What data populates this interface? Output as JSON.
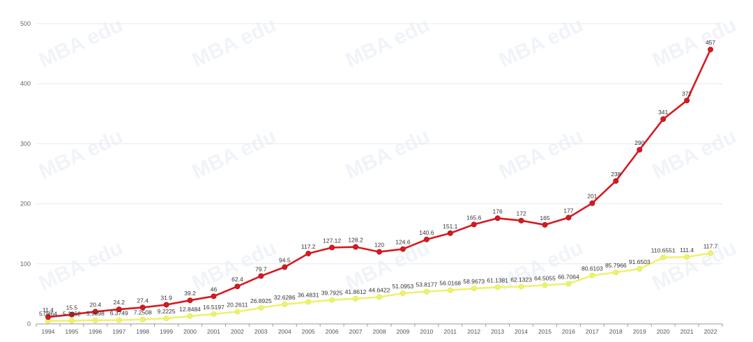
{
  "chart_data": {
    "type": "line",
    "title": "",
    "xlabel": "",
    "ylabel": "",
    "x": [
      "1994",
      "1995",
      "1996",
      "1997",
      "1998",
      "1999",
      "2000",
      "2001",
      "2002",
      "2003",
      "2004",
      "2005",
      "2006",
      "2007",
      "2008",
      "2009",
      "2010",
      "2011",
      "2012",
      "2013",
      "2014",
      "2015",
      "2016",
      "2017",
      "2018",
      "2019",
      "2020",
      "2021",
      "2022"
    ],
    "ylim": [
      0,
      500
    ],
    "yticks": [
      0,
      100,
      200,
      300,
      400,
      500
    ],
    "grid": true,
    "legend": "none",
    "watermark": "MBA edu",
    "series": [
      {
        "color": "#d71920",
        "values": [
          11.4,
          15.5,
          20.4,
          24.2,
          27.4,
          31.9,
          39.2,
          46,
          62.4,
          79.7,
          94.5,
          117.2,
          127.12,
          128.2,
          120,
          124.6,
          140.6,
          151.1,
          165.6,
          176,
          172,
          165,
          177,
          201,
          238,
          290,
          341,
          372,
          457
        ],
        "labels": [
          "11.4",
          "15.5",
          "20.4",
          "24.2",
          "27.4",
          "31.9",
          "39.2",
          "46",
          "62.4",
          "79.7",
          "94.5",
          "117.2",
          "127.12",
          "128.2",
          "120",
          "124.6",
          "140.6",
          "151.1",
          "165.6",
          "176",
          "172",
          "165",
          "177",
          "201",
          "238",
          "290",
          "341",
          "372",
          "457"
        ]
      },
      {
        "color": "#eef26a",
        "values": [
          5.0864,
          5.2852,
          5.9898,
          6.3749,
          7.2508,
          9.2225,
          12.8484,
          16.5197,
          20.2611,
          26.8925,
          32.6286,
          36.4831,
          39.7925,
          41.8612,
          44.6422,
          51.0953,
          53.8177,
          56.0168,
          58.9673,
          61.1381,
          62.1323,
          64.5055,
          66.7064,
          80.6103,
          85.7966,
          91.6503,
          110.6551,
          111.4,
          117.7
        ],
        "labels": [
          "5.0864",
          "5.2852",
          "5.9898",
          "6.3749",
          "7.2508",
          "9.2225",
          "12.8484",
          "16.5197",
          "20.2611",
          "26.8925",
          "32.6286",
          "36.4831",
          "39.7925",
          "41.8612",
          "44.6422",
          "51.0953",
          "53.8177",
          "56.0168",
          "58.9673",
          "61.1381",
          "62.1323",
          "64.5055",
          "66.7064",
          "80.6103",
          "85.7966",
          "91.6503",
          "110.6551",
          "111.4",
          "117.7"
        ]
      }
    ]
  }
}
